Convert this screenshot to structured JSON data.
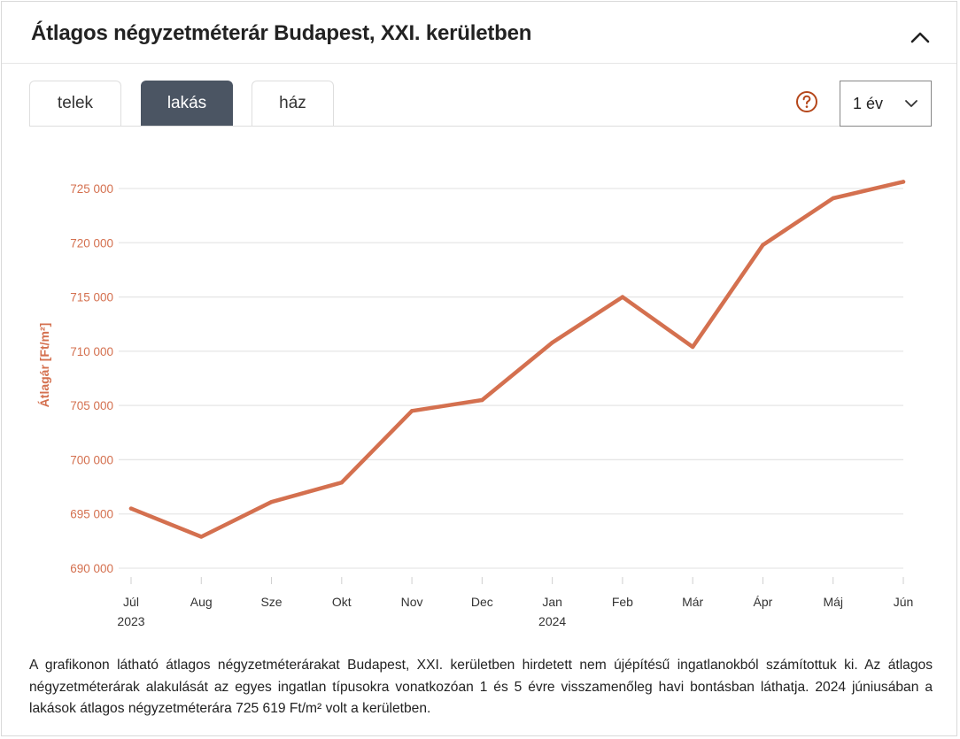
{
  "header": {
    "title": "Átlagos négyzetméterár Budapest, XXI. kerületben"
  },
  "tabs": [
    {
      "label": "telek",
      "active": false
    },
    {
      "label": "lakás",
      "active": true
    },
    {
      "label": "ház",
      "active": false
    }
  ],
  "controls": {
    "period_selected": "1 év",
    "help_icon": "question-circle-icon",
    "collapse_icon": "chevron-up-icon"
  },
  "colors": {
    "line": "#d4704f",
    "tick_label": "#d4704f",
    "active_tab": "#4b5563",
    "help": "#b5471b"
  },
  "chart_data": {
    "type": "line",
    "ylabel": "Átlagár [Ft/m²]",
    "xlabel": "",
    "ylim": [
      690000,
      725000
    ],
    "yticks": [
      690000,
      695000,
      700000,
      705000,
      710000,
      715000,
      720000,
      725000
    ],
    "ytick_labels": [
      "690 000",
      "695 000",
      "700 000",
      "705 000",
      "710 000",
      "715 000",
      "720 000",
      "725 000"
    ],
    "categories": [
      "Júl",
      "Aug",
      "Sze",
      "Okt",
      "Nov",
      "Dec",
      "Jan",
      "Feb",
      "Már",
      "Ápr",
      "Máj",
      "Jún"
    ],
    "year_labels": [
      {
        "index": 0,
        "label": "2023"
      },
      {
        "index": 6,
        "label": "2024"
      }
    ],
    "series": [
      {
        "values": [
          695500,
          692900,
          696100,
          697900,
          704500,
          705500,
          710800,
          715000,
          710400,
          719800,
          724100,
          725619
        ]
      }
    ],
    "grid": true
  },
  "description": "A grafikonon látható átlagos négyzetméterárakat Budapest, XXI. kerületben hirdetett nem újépítésű ingatlanokból számítottuk ki. Az átlagos négyzetméterárak alakulását az egyes ingatlan típusokra vonatkozóan 1 és 5 évre visszamenőleg havi bontásban láthatja. 2024 júniusában a lakások átlagos négyzetméterára 725 619 Ft/m² volt a kerületben."
}
